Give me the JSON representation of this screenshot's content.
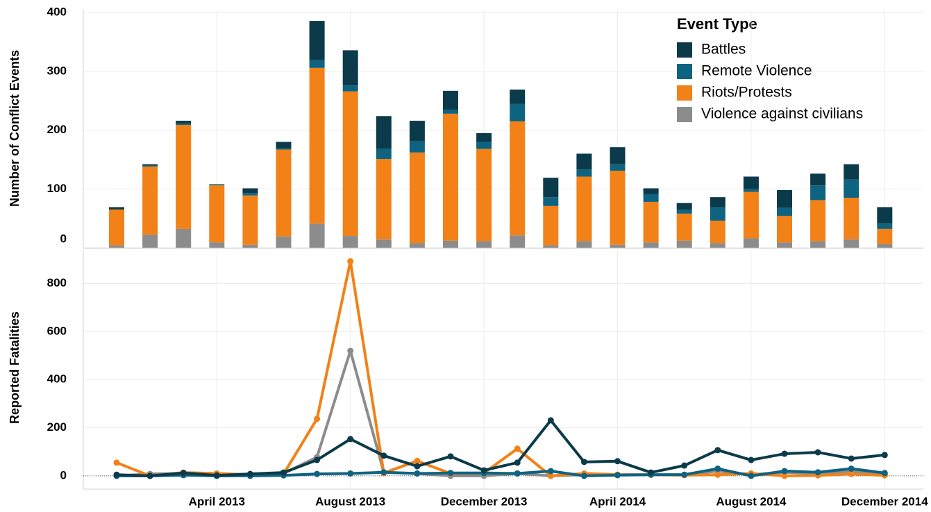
{
  "chart_data": [
    {
      "type": "bar",
      "stacked": true,
      "y_label": "Number of Conflict Events",
      "legend_title": "Event Type",
      "legend": "top-right",
      "ylim": [
        0,
        405
      ],
      "yticks": [
        0,
        100,
        200,
        300,
        400
      ],
      "grid": true,
      "series": [
        {
          "name": "Violence against civilians",
          "color": "#8c8c8c",
          "values": [
            4,
            22,
            32,
            9,
            5,
            19,
            41,
            20,
            14,
            8,
            12,
            11,
            21,
            4,
            11,
            5,
            9,
            12,
            8,
            16,
            9,
            11,
            14,
            6
          ]
        },
        {
          "name": "Riots/Protests",
          "color": "#f28118",
          "values": [
            61,
            116,
            177,
            97,
            84,
            148,
            265,
            246,
            137,
            154,
            216,
            157,
            194,
            67,
            110,
            126,
            69,
            46,
            38,
            79,
            45,
            70,
            71,
            26
          ]
        },
        {
          "name": "Remote Violence",
          "color": "#0e6380",
          "values": [
            0,
            2,
            2,
            1,
            4,
            2,
            13,
            10,
            17,
            19,
            7,
            12,
            30,
            15,
            12,
            11,
            13,
            7,
            23,
            5,
            14,
            25,
            31,
            9
          ]
        },
        {
          "name": "Battles",
          "color": "#0b3a4a",
          "values": [
            4,
            2,
            5,
            1,
            8,
            11,
            67,
            60,
            56,
            35,
            32,
            15,
            24,
            33,
            27,
            29,
            10,
            11,
            17,
            21,
            30,
            20,
            26,
            28
          ]
        }
      ]
    },
    {
      "type": "line",
      "y_label": "Reported Fatalities",
      "categories": [
        null,
        null,
        null,
        "April 2013",
        null,
        null,
        null,
        "August 2013",
        null,
        null,
        null,
        "December 2013",
        null,
        null,
        null,
        "April 2014",
        null,
        null,
        null,
        "August 2014",
        null,
        null,
        null,
        "December 2014"
      ],
      "ylim": [
        -55,
        940
      ],
      "yticks": [
        0,
        200,
        400,
        600,
        800
      ],
      "grid": true,
      "series": [
        {
          "color": "#8c8c8c",
          "values": [
            0,
            8,
            10,
            5,
            5,
            10,
            78,
            520,
            15,
            10,
            0,
            0,
            10,
            0,
            5,
            5,
            5,
            5,
            20,
            5,
            15,
            10,
            20,
            5
          ]
        },
        {
          "color": "#f28118",
          "values": [
            55,
            0,
            14,
            10,
            5,
            8,
            237,
            892,
            12,
            62,
            10,
            12,
            113,
            0,
            10,
            5,
            5,
            3,
            5,
            10,
            0,
            2,
            8,
            2
          ]
        },
        {
          "color": "#0e6380",
          "values": [
            0,
            0,
            3,
            0,
            0,
            2,
            8,
            10,
            15,
            10,
            12,
            12,
            10,
            20,
            0,
            3,
            5,
            5,
            30,
            0,
            20,
            15,
            30,
            12
          ]
        },
        {
          "color": "#0b3a4a",
          "values": [
            5,
            0,
            12,
            2,
            8,
            14,
            66,
            153,
            84,
            40,
            81,
            23,
            55,
            231,
            58,
            61,
            14,
            43,
            107,
            66,
            92,
            98,
            72,
            87
          ]
        }
      ]
    }
  ]
}
